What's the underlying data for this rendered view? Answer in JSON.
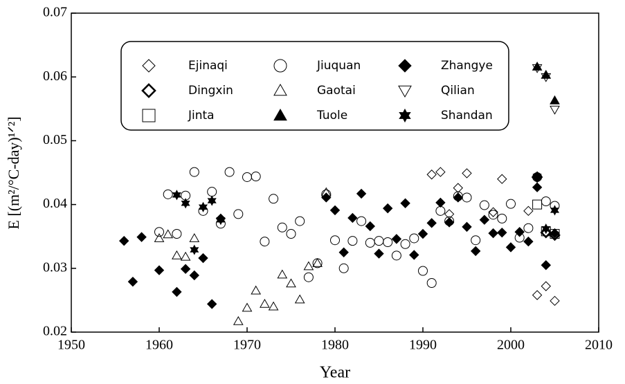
{
  "chart_data": {
    "type": "scatter",
    "xlabel": "Year",
    "ylabel": "E [(m²/°C-day)¹ᐟ²]",
    "xlim": [
      1950,
      2010
    ],
    "xticks": [
      1950,
      1960,
      1970,
      1980,
      1990,
      2000,
      2010
    ],
    "ylim": [
      0.02,
      0.07
    ],
    "yticks": [
      0.02,
      0.03,
      0.04,
      0.05,
      0.06,
      0.07
    ],
    "series": [
      {
        "name": "Ejinaqi",
        "marker": "diamond",
        "filled": false,
        "color": "#000000",
        "x": [
          1991,
          1992,
          1993,
          1994,
          1995,
          1998,
          1999,
          2002,
          2003,
          2004,
          2005
        ],
        "values": [
          0.0447,
          0.0451,
          0.0385,
          0.0426,
          0.0449,
          0.0388,
          0.044,
          0.039,
          0.0258,
          0.0272,
          0.0249
        ]
      },
      {
        "name": "Dingxin",
        "marker": "diamond-bold",
        "filled": false,
        "color": "#000000",
        "x": [
          2003,
          2004,
          2005
        ],
        "values": [
          0.0443,
          0.0356,
          0.0352
        ]
      },
      {
        "name": "Jinta",
        "marker": "square",
        "filled": false,
        "color": "#000000",
        "x": [
          2003,
          2004,
          2005
        ],
        "values": [
          0.04,
          0.0358,
          0.0354
        ]
      },
      {
        "name": "Jiuquan",
        "marker": "circle",
        "filled": false,
        "color": "#000000",
        "x": [
          1960,
          1961,
          1962,
          1963,
          1964,
          1965,
          1966,
          1967,
          1968,
          1969,
          1970,
          1971,
          1972,
          1973,
          1974,
          1975,
          1976,
          1977,
          1978,
          1979,
          1980,
          1981,
          1982,
          1983,
          1984,
          1985,
          1986,
          1987,
          1988,
          1989,
          1990,
          1991,
          1992,
          1993,
          1994,
          1995,
          1996,
          1997,
          1998,
          1999,
          2000,
          2001,
          2002,
          2003,
          2004,
          2005
        ],
        "values": [
          0.0357,
          0.0416,
          0.0354,
          0.0414,
          0.0451,
          0.039,
          0.042,
          0.037,
          0.0451,
          0.0385,
          0.0443,
          0.0444,
          0.0342,
          0.0409,
          0.0364,
          0.0354,
          0.0374,
          0.0286,
          0.0308,
          0.0416,
          0.0344,
          0.03,
          0.0343,
          0.0374,
          0.034,
          0.0343,
          0.0341,
          0.032,
          0.0338,
          0.0347,
          0.0296,
          0.0277,
          0.039,
          0.0374,
          0.0413,
          0.0411,
          0.0344,
          0.0399,
          0.0384,
          0.0378,
          0.0401,
          0.0348,
          0.0363,
          0.0443,
          0.0405,
          0.0398
        ]
      },
      {
        "name": "Gaotai",
        "marker": "triangle",
        "filled": false,
        "color": "#000000",
        "x": [
          1960,
          1961,
          1962,
          1963,
          1964,
          1969,
          1970,
          1971,
          1972,
          1973,
          1974,
          1975,
          1976,
          1977,
          1978,
          1979
        ],
        "values": [
          0.0347,
          0.0353,
          0.032,
          0.0318,
          0.0347,
          0.0217,
          0.0238,
          0.0265,
          0.0244,
          0.024,
          0.029,
          0.0276,
          0.0251,
          0.0303,
          0.0308,
          0.0419
        ]
      },
      {
        "name": "Tuole",
        "marker": "triangle",
        "filled": true,
        "color": "#000000",
        "x": [
          2003,
          2004,
          2005
        ],
        "values": [
          0.0616,
          0.0603,
          0.0563
        ]
      },
      {
        "name": "Zhangye",
        "marker": "diamond",
        "filled": true,
        "color": "#000000",
        "x": [
          1956,
          1957,
          1958,
          1960,
          1962,
          1963,
          1964,
          1965,
          1966,
          1967,
          1979,
          1980,
          1981,
          1982,
          1983,
          1984,
          1985,
          1986,
          1987,
          1988,
          1989,
          1990,
          1991,
          1992,
          1993,
          1994,
          1995,
          1996,
          1997,
          1998,
          1999,
          2000,
          2001,
          2002,
          2003,
          2004,
          2005
        ],
        "values": [
          0.0343,
          0.0279,
          0.0349,
          0.0297,
          0.0263,
          0.0299,
          0.0289,
          0.0316,
          0.0244,
          0.0378,
          0.0411,
          0.0391,
          0.0325,
          0.0379,
          0.0417,
          0.0366,
          0.0323,
          0.0394,
          0.0346,
          0.0402,
          0.0321,
          0.0354,
          0.0371,
          0.0403,
          0.0372,
          0.0411,
          0.0365,
          0.0327,
          0.0376,
          0.0355,
          0.0356,
          0.0333,
          0.0357,
          0.0342,
          0.0427,
          0.0305,
          0.0355
        ]
      },
      {
        "name": "Qilian",
        "marker": "triangle-down",
        "filled": false,
        "color": "#000000",
        "x": [
          2003,
          2004,
          2005
        ],
        "values": [
          0.0614,
          0.06,
          0.0549
        ]
      },
      {
        "name": "Shandan",
        "marker": "star",
        "filled": true,
        "color": "#000000",
        "x": [
          1962,
          1963,
          1964,
          1965,
          1966,
          1967,
          2003,
          2004,
          2005
        ],
        "values": [
          0.0415,
          0.0402,
          0.0329,
          0.0396,
          0.0406,
          0.0376,
          0.0444,
          0.0362,
          0.0391
        ]
      }
    ]
  }
}
